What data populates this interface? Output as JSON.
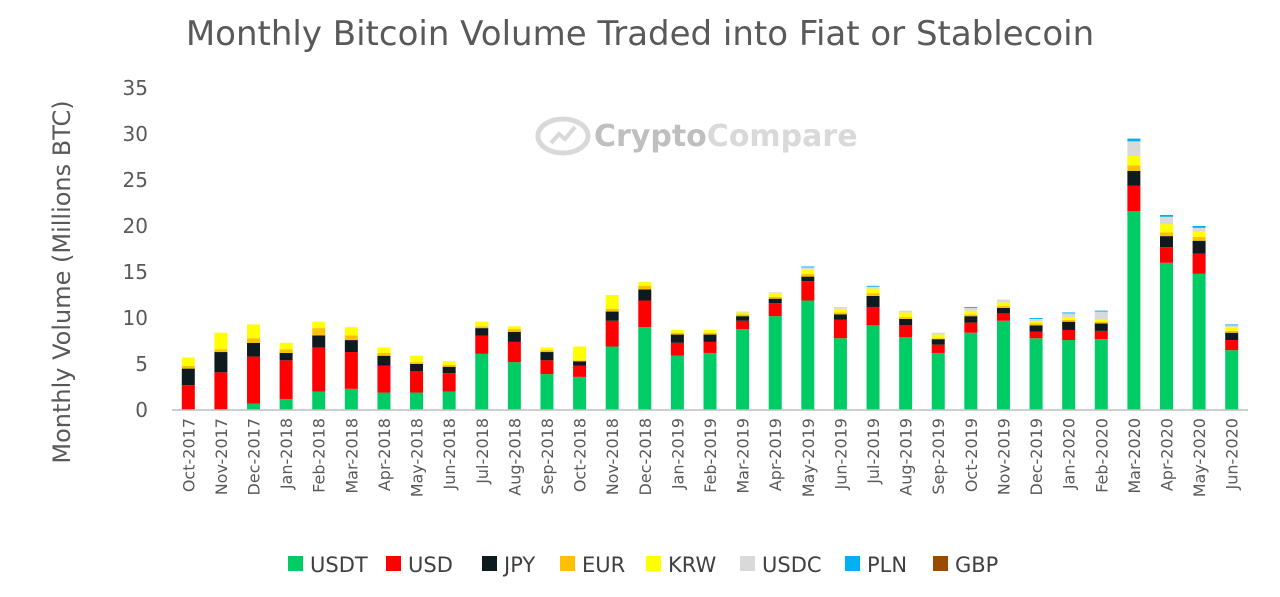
{
  "watermark": {
    "prefix": "Crypto",
    "suffix": "Compare"
  },
  "chart_data": {
    "type": "bar",
    "stacked": true,
    "title": "Monthly Bitcoin Volume Traded into Fiat or Stablecoin",
    "ylabel": "Monthly Volume (Millions BTC)",
    "ylim": [
      0,
      35
    ],
    "yticks": [
      0,
      5,
      10,
      15,
      20,
      25,
      30,
      35
    ],
    "grid": false,
    "legend_position": "bottom",
    "categories": [
      "Oct-2017",
      "Nov-2017",
      "Dec-2017",
      "Jan-2018",
      "Feb-2018",
      "Mar-2018",
      "Apr-2018",
      "May-2018",
      "Jun-2018",
      "Jul-2018",
      "Aug-2018",
      "Sep-2018",
      "Oct-2018",
      "Nov-2018",
      "Dec-2018",
      "Jan-2019",
      "Feb-2019",
      "Mar-2019",
      "Apr-2019",
      "May-2019",
      "Jun-2019",
      "Jul-2019",
      "Aug-2019",
      "Sep-2019",
      "Oct-2019",
      "Nov-2019",
      "Dec-2019",
      "Jan-2020",
      "Feb-2020",
      "Mar-2020",
      "Apr-2020",
      "May-2020",
      "Jun-2020"
    ],
    "series": [
      {
        "name": "USDT",
        "color": "#00cc66",
        "values": [
          0,
          0,
          0.7,
          1.2,
          2.0,
          2.3,
          1.9,
          1.9,
          2.0,
          6.1,
          5.2,
          3.9,
          3.6,
          6.9,
          9.0,
          5.9,
          6.2,
          8.8,
          10.2,
          11.9,
          7.8,
          9.2,
          7.9,
          6.2,
          8.4,
          9.7,
          7.8,
          7.6,
          7.7,
          21.6,
          16.0,
          14.8,
          6.5
        ]
      },
      {
        "name": "USD",
        "color": "#ff0000",
        "values": [
          2.7,
          4.1,
          5.1,
          4.2,
          4.8,
          4.0,
          2.9,
          2.3,
          2.0,
          2.0,
          2.2,
          1.5,
          1.2,
          2.8,
          2.9,
          1.4,
          1.2,
          0.9,
          1.4,
          2.1,
          2.0,
          2.0,
          1.3,
          0.9,
          1.1,
          0.8,
          0.7,
          1.1,
          0.9,
          2.8,
          1.7,
          2.2,
          1.1
        ]
      },
      {
        "name": "JPY",
        "color": "#0d1b1e",
        "values": [
          1.8,
          2.2,
          1.5,
          0.8,
          1.3,
          1.3,
          1.1,
          0.8,
          0.7,
          0.8,
          1.1,
          0.9,
          0.5,
          1.0,
          1.2,
          0.9,
          0.8,
          0.5,
          0.5,
          0.5,
          0.6,
          1.2,
          0.7,
          0.6,
          0.7,
          0.6,
          0.7,
          0.9,
          0.8,
          1.6,
          1.2,
          1.4,
          0.8
        ]
      },
      {
        "name": "EUR",
        "color": "#ffc000",
        "values": [
          0.3,
          0.3,
          0.5,
          0.4,
          0.8,
          0.5,
          0.3,
          0.2,
          0.2,
          0.2,
          0.3,
          0.2,
          0.1,
          0.3,
          0.4,
          0.2,
          0.2,
          0.2,
          0.2,
          0.3,
          0.2,
          0.3,
          0.2,
          0.1,
          0.2,
          0.2,
          0.2,
          0.2,
          0.2,
          0.6,
          0.4,
          0.4,
          0.2
        ]
      },
      {
        "name": "KRW",
        "color": "#ffff00",
        "values": [
          0.9,
          1.8,
          1.5,
          0.7,
          0.7,
          0.9,
          0.6,
          0.7,
          0.4,
          0.5,
          0.3,
          0.3,
          1.5,
          1.5,
          0.4,
          0.3,
          0.3,
          0.2,
          0.4,
          0.5,
          0.4,
          0.5,
          0.5,
          0.4,
          0.4,
          0.4,
          0.2,
          0.3,
          0.2,
          1.0,
          0.9,
          0.6,
          0.4
        ]
      },
      {
        "name": "USDC",
        "color": "#d9d9d9",
        "values": [
          0,
          0,
          0,
          0,
          0,
          0,
          0,
          0,
          0,
          0,
          0,
          0,
          0,
          0,
          0,
          0,
          0,
          0.1,
          0.1,
          0.2,
          0.2,
          0.2,
          0.2,
          0.2,
          0.3,
          0.3,
          0.3,
          0.4,
          0.9,
          1.6,
          0.8,
          0.4,
          0.2
        ]
      },
      {
        "name": "PLN",
        "color": "#00b0f0",
        "values": [
          0,
          0,
          0,
          0,
          0,
          0,
          0,
          0,
          0,
          0,
          0,
          0,
          0,
          0,
          0,
          0,
          0,
          0,
          0,
          0.1,
          0,
          0.1,
          0,
          0,
          0.1,
          0,
          0.1,
          0.1,
          0.1,
          0.3,
          0.2,
          0.2,
          0.1
        ]
      },
      {
        "name": "GBP",
        "color": "#9c4a00",
        "values": [
          0,
          0,
          0,
          0,
          0,
          0,
          0,
          0,
          0,
          0,
          0,
          0,
          0,
          0,
          0,
          0,
          0,
          0,
          0,
          0,
          0,
          0,
          0,
          0,
          0,
          0,
          0,
          0,
          0,
          0,
          0,
          0,
          0
        ]
      }
    ]
  }
}
